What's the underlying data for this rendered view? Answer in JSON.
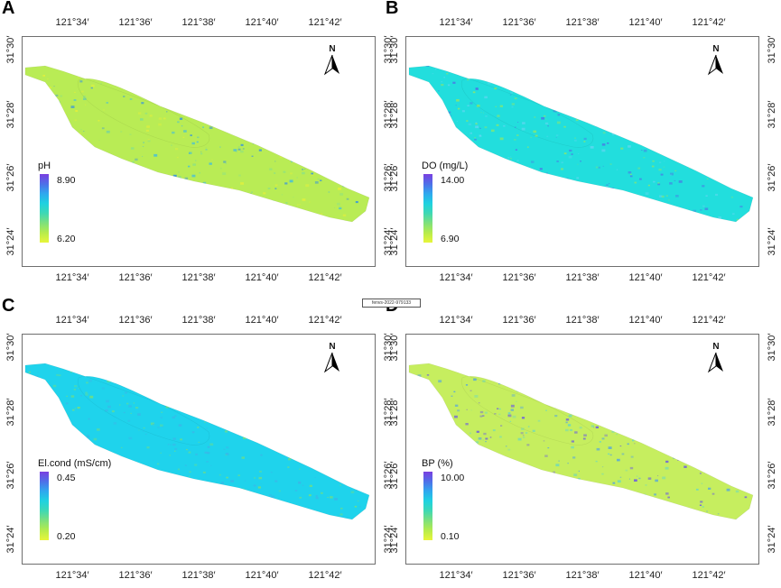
{
  "figure": {
    "doi_label": "fenvs-2022-979133",
    "lon_ticks": [
      "121°34′",
      "121°36′",
      "121°38′",
      "121°40′",
      "121°42′"
    ],
    "lat_ticks": [
      "31°30′",
      "31°28′",
      "31°26′",
      "31°24′"
    ],
    "north_label": "N"
  },
  "panels": [
    {
      "letter": "A",
      "legend_title": "pH",
      "legend_max": "8.90",
      "legend_min": "6.20",
      "fill_level": 0.55,
      "dominant_color": "#b9ec55",
      "speckle_colors": [
        "#3fbde0",
        "#2f8fe6",
        "#e6f03a",
        "#84e08c"
      ]
    },
    {
      "letter": "B",
      "legend_title": "DO (mg/L)",
      "legend_max": "14.00",
      "legend_min": "6.90",
      "fill_level": 0.6,
      "dominant_color": "#22dedd",
      "speckle_colors": [
        "#4a78e6",
        "#5fd7f0",
        "#8ee86a"
      ]
    },
    {
      "letter": "C",
      "legend_title": "El.cond (mS/cm)",
      "legend_max": "0.45",
      "legend_min": "0.20",
      "fill_level": 0.62,
      "dominant_color": "#1fd3ec",
      "speckle_colors": [
        "#78e07a",
        "#3ab7e8"
      ]
    },
    {
      "letter": "D",
      "legend_title": "BP (%)",
      "legend_max": "10.00",
      "legend_min": "0.10",
      "fill_level": 0.2,
      "dominant_color": "#c6ee5f",
      "speckle_colors": [
        "#4ca0e8",
        "#6a58e4",
        "#63d7c8"
      ]
    }
  ],
  "colormap": [
    "#e8f53a",
    "#b6ec4c",
    "#7ee07c",
    "#3fd8b4",
    "#1fd2e0",
    "#2fa8ee",
    "#4f6fe8",
    "#7a3fe0"
  ]
}
